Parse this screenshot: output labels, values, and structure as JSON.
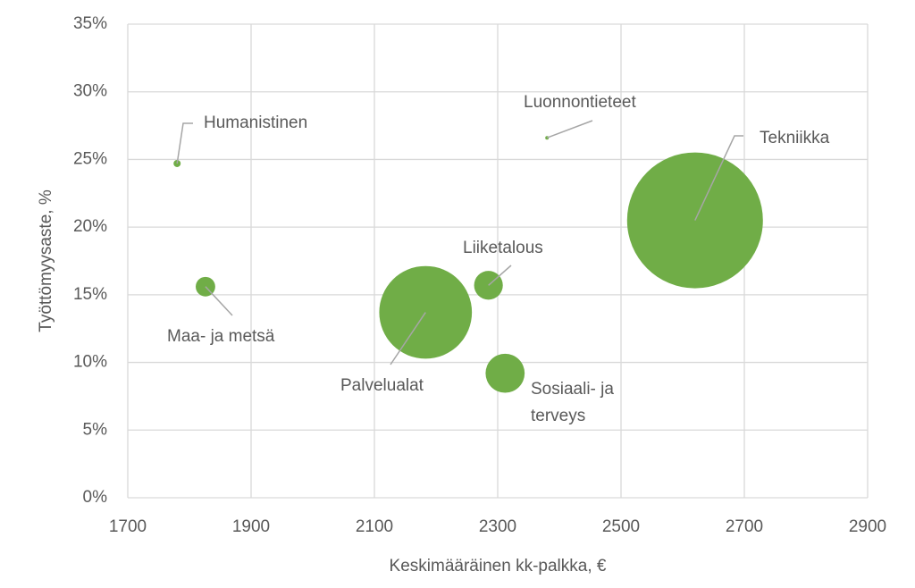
{
  "chart_data": {
    "type": "bubble",
    "xlabel": "Keskimääräinen kk-palkka, €",
    "ylabel": "Työttömyysaste, %",
    "xlim": [
      1700,
      2900
    ],
    "xticks": [
      1700,
      1900,
      2100,
      2300,
      2500,
      2700,
      2900
    ],
    "ylim": [
      0,
      35
    ],
    "yticks": [
      {
        "value": 0,
        "label": "0%"
      },
      {
        "value": 5,
        "label": "5%"
      },
      {
        "value": 10,
        "label": "10%"
      },
      {
        "value": 15,
        "label": "15%"
      },
      {
        "value": 20,
        "label": "20%"
      },
      {
        "value": 25,
        "label": "25%"
      },
      {
        "value": 30,
        "label": "30%"
      },
      {
        "value": 35,
        "label": "35%"
      }
    ],
    "grid": true,
    "color": "#70ad47",
    "series": [
      {
        "name": null,
        "color": "#70ad47",
        "labels": [
          "Humanistinen",
          "Luonnontieteet",
          "Tekniikka",
          "Liiketalous",
          "Maa- ja metsä",
          "Palvelualat",
          "Sosiaali- ja terveys"
        ],
        "x": [
          1780,
          2380,
          2620,
          2285,
          1826,
          2183,
          2312
        ],
        "values": [
          24.7,
          26.6,
          20.5,
          15.7,
          15.6,
          13.7,
          9.2
        ],
        "sizes": [
          16,
          4,
          5800,
          260,
          120,
          2700,
          480
        ]
      }
    ]
  }
}
